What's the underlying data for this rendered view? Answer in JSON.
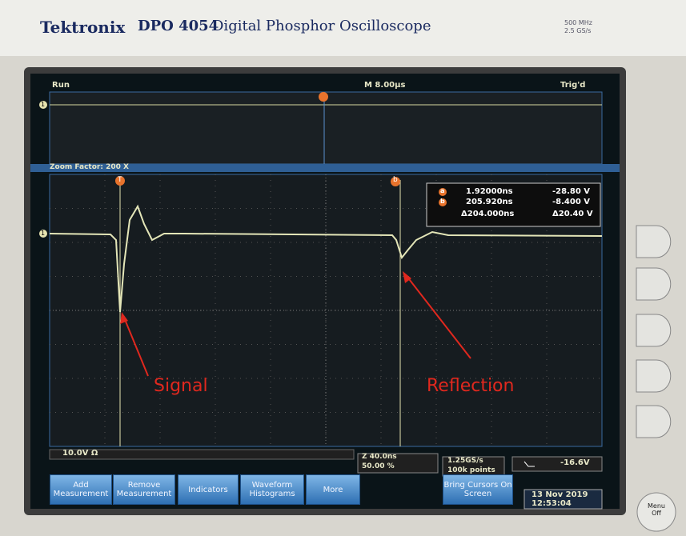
{
  "header": {
    "brand": "Tektronix",
    "model": "DPO 4054",
    "description": "Digital Phosphor Oscilloscope",
    "bandwidth": "500 MHz",
    "sample_rate": "2.5 GS/s"
  },
  "status": {
    "mode": "Run",
    "timebase": "M 8.00µs",
    "trigger": "Trig'd",
    "zoom": "Zoom Factor: 200 X"
  },
  "markers": {
    "channel": "1",
    "trigger": "T",
    "cursor_a": "a",
    "cursor_b": "b"
  },
  "readout": {
    "rows": [
      {
        "label": "a",
        "time": "1.92000ns",
        "volts": "-28.80 V"
      },
      {
        "label": "b",
        "time": "205.920ns",
        "volts": "-8.400 V"
      },
      {
        "time": "Δ204.000ns",
        "volts": "Δ20.40 V"
      }
    ]
  },
  "annotations": [
    "Signal",
    "Reflection"
  ],
  "footer": {
    "channel_scale": "10.0V Ω",
    "zoom_scale": "Z 40.0ns",
    "zoom_position": "50.00 %",
    "acq_rate": "1.25GS/s",
    "record_length": "100k points",
    "trigger_level": "-16.6V",
    "date": "13 Nov 2019",
    "time": "12:53:04"
  },
  "menu": [
    "Add Measurement",
    "Remove Measurement",
    "Indicators",
    "Waveform Histograms",
    "More",
    "Bring Cursors On Screen"
  ],
  "menu_off": "Menu Off"
}
